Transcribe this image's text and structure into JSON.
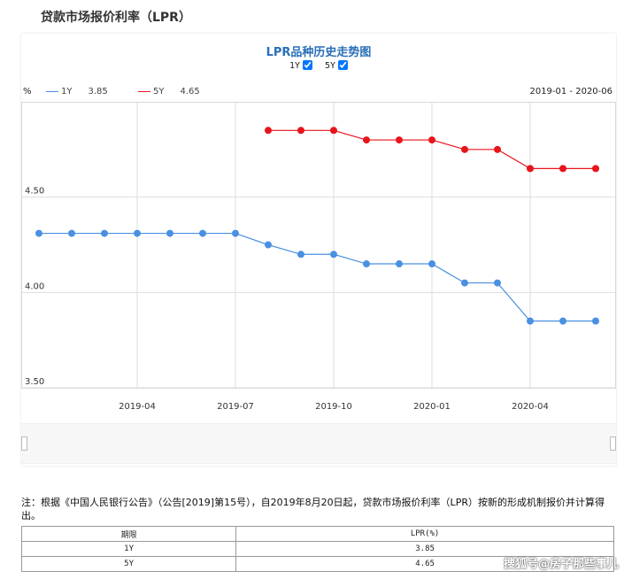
{
  "page": {
    "title": "贷款市场报价利率（LPR）"
  },
  "chart_data": {
    "type": "line",
    "title": "LPR品种历史走势图",
    "ylabel": "%",
    "date_range": "2019-01 - 2020-06",
    "ylim": [
      3.5,
      5.0
    ],
    "yticks": [
      3.5,
      4.0,
      4.5
    ],
    "ytick_labels": [
      "3.50",
      "4.00",
      "4.50"
    ],
    "grid": true,
    "legend_position": "top-left",
    "x": [
      "2019-01",
      "2019-02",
      "2019-03",
      "2019-04",
      "2019-05",
      "2019-06",
      "2019-07",
      "2019-08",
      "2019-09",
      "2019-10",
      "2019-11",
      "2019-12",
      "2020-01",
      "2020-02",
      "2020-03",
      "2020-04",
      "2020-05",
      "2020-06"
    ],
    "xticks": [
      "2019-04",
      "2019-07",
      "2019-10",
      "2020-01",
      "2020-04"
    ],
    "series": [
      {
        "name": "1Y",
        "latest": "3.85",
        "color": "#4a90e2",
        "checked": true,
        "values": [
          4.31,
          4.31,
          4.31,
          4.31,
          4.31,
          4.31,
          4.31,
          4.25,
          4.2,
          4.2,
          4.15,
          4.15,
          4.15,
          4.05,
          4.05,
          3.85,
          3.85,
          3.85
        ]
      },
      {
        "name": "5Y",
        "latest": "4.65",
        "color": "#e8141c",
        "checked": true,
        "values": [
          null,
          null,
          null,
          null,
          null,
          null,
          null,
          4.85,
          4.85,
          4.85,
          4.8,
          4.8,
          4.8,
          4.75,
          4.75,
          4.65,
          4.65,
          4.65
        ]
      }
    ]
  },
  "note": "注：根据《中国人民银行公告》（公告[2019]第15号），自2019年8月20日起，贷款市场报价利率（LPR）按新的形成机制报价并计算得出。",
  "table": {
    "headers": [
      "期限",
      "LPR(%)"
    ],
    "rows": [
      [
        "1Y",
        "3.85"
      ],
      [
        "5Y",
        "4.65"
      ]
    ]
  },
  "watermark": "搜狐号@房子那些事儿"
}
